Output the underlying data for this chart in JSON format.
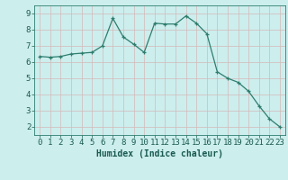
{
  "x": [
    0,
    1,
    2,
    3,
    4,
    5,
    6,
    7,
    8,
    9,
    10,
    11,
    12,
    13,
    14,
    15,
    16,
    17,
    18,
    19,
    20,
    21,
    22,
    23
  ],
  "y": [
    6.35,
    6.3,
    6.35,
    6.5,
    6.55,
    6.6,
    7.0,
    8.7,
    7.55,
    7.1,
    6.6,
    8.4,
    8.35,
    8.35,
    8.85,
    8.4,
    7.75,
    5.4,
    5.0,
    4.75,
    4.2,
    3.3,
    2.5,
    2.0
  ],
  "xlim": [
    -0.5,
    23.5
  ],
  "ylim": [
    1.5,
    9.5
  ],
  "yticks": [
    2,
    3,
    4,
    5,
    6,
    7,
    8,
    9
  ],
  "xticks": [
    0,
    1,
    2,
    3,
    4,
    5,
    6,
    7,
    8,
    9,
    10,
    11,
    12,
    13,
    14,
    15,
    16,
    17,
    18,
    19,
    20,
    21,
    22,
    23
  ],
  "xlabel": "Humidex (Indice chaleur)",
  "line_color": "#2e7d6e",
  "marker": "+",
  "bg_color": "#cceeed",
  "grid_color": "#d4b8b8",
  "axis_label_color": "#1a5a50",
  "tick_color": "#1a5a50",
  "xlabel_fontsize": 7,
  "tick_fontsize": 6.5
}
